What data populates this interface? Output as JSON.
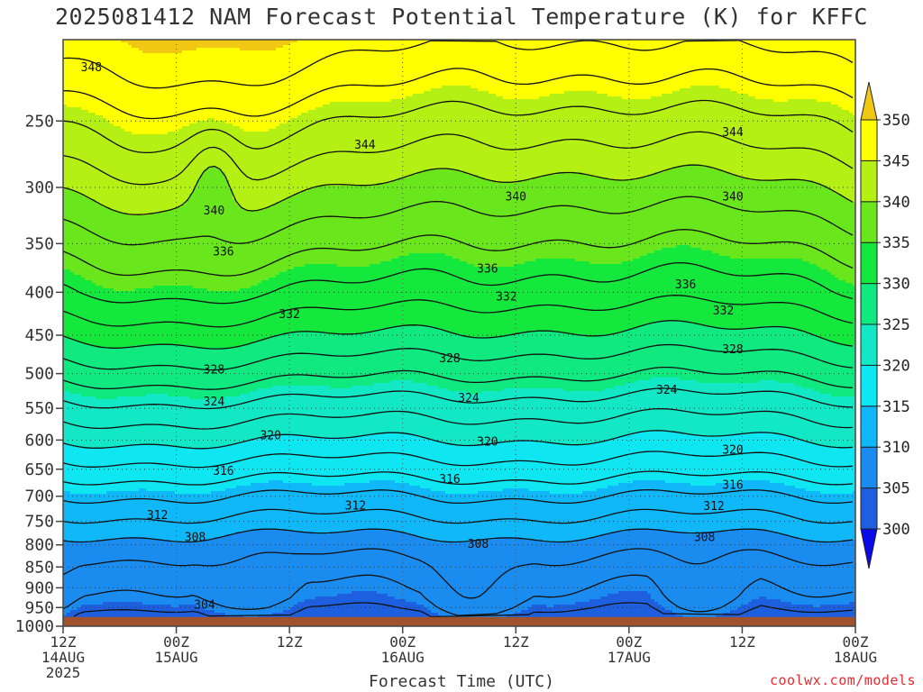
{
  "title": "2025081412 NAM Forecast Potential Temperature (K) for KFFC",
  "xlabel": "Forecast Time (UTC)",
  "credit": "coolwx.com/models",
  "chart_data": {
    "type": "filled-contour",
    "title": "2025081412 NAM Forecast Potential Temperature (K) for KFFC",
    "xlabel": "Forecast Time (UTC)",
    "ylabel": "",
    "x_ticks": [
      {
        "hour": 0,
        "lines": [
          "12Z",
          "14AUG",
          "2025"
        ]
      },
      {
        "hour": 12,
        "lines": [
          "00Z",
          "15AUG"
        ]
      },
      {
        "hour": 24,
        "lines": [
          "12Z"
        ]
      },
      {
        "hour": 36,
        "lines": [
          "00Z",
          "16AUG"
        ]
      },
      {
        "hour": 48,
        "lines": [
          "12Z"
        ]
      },
      {
        "hour": 60,
        "lines": [
          "00Z",
          "17AUG"
        ]
      },
      {
        "hour": 72,
        "lines": [
          "12Z"
        ]
      },
      {
        "hour": 84,
        "lines": [
          "00Z",
          "18AUG"
        ]
      }
    ],
    "xlim_hours": [
      0,
      84
    ],
    "y_ticks": [
      250,
      300,
      350,
      400,
      450,
      500,
      550,
      600,
      650,
      700,
      750,
      800,
      850,
      900,
      950,
      1000
    ],
    "ylim_hPa": [
      200,
      1000
    ],
    "y_scale": "log",
    "y_reversed": true,
    "grid": "dotted",
    "colorbar": {
      "levels": [
        300,
        305,
        310,
        315,
        320,
        325,
        330,
        335,
        340,
        345,
        350
      ],
      "colors": [
        "#0a0ae6",
        "#1e5fe0",
        "#1a8cf0",
        "#10b8fa",
        "#0ee6f2",
        "#12e8c6",
        "#10e880",
        "#14e83c",
        "#6ae61c",
        "#b4f014",
        "#ffff00",
        "#f0c814"
      ],
      "extend": "both",
      "ticks": [
        "300",
        "305",
        "310",
        "315",
        "320",
        "325",
        "330",
        "335",
        "340",
        "345",
        "350"
      ]
    },
    "terrain_color": "#a0522d",
    "terrain_top_hPa": 975,
    "profile_levels_hPa": [
      975,
      950,
      925,
      900,
      850,
      800,
      750,
      700,
      650,
      600,
      550,
      500,
      450,
      400,
      350,
      300,
      275,
      250,
      225,
      200
    ],
    "mean_profile_K": [
      303.5,
      305,
      306,
      306.5,
      307.5,
      309,
      311.5,
      314,
      317,
      320,
      323,
      326.5,
      330,
      333.5,
      336.5,
      340,
      342,
      344,
      346.5,
      349
    ],
    "contour_levels": [
      304,
      306,
      308,
      310,
      312,
      314,
      316,
      318,
      320,
      322,
      324,
      326,
      328,
      330,
      332,
      334,
      336,
      338,
      340,
      342,
      344,
      346,
      348
    ],
    "contour_labels": [
      {
        "text": "348",
        "hour": 3,
        "hPa": 216
      },
      {
        "text": "344",
        "hour": 32,
        "hPa": 267
      },
      {
        "text": "344",
        "hour": 71,
        "hPa": 258
      },
      {
        "text": "340",
        "hour": 16,
        "hPa": 320
      },
      {
        "text": "340",
        "hour": 48,
        "hPa": 308
      },
      {
        "text": "340",
        "hour": 71,
        "hPa": 308
      },
      {
        "text": "336",
        "hour": 17,
        "hPa": 358
      },
      {
        "text": "336",
        "hour": 45,
        "hPa": 375
      },
      {
        "text": "336",
        "hour": 66,
        "hPa": 392
      },
      {
        "text": "332",
        "hour": 24,
        "hPa": 425
      },
      {
        "text": "332",
        "hour": 47,
        "hPa": 405
      },
      {
        "text": "332",
        "hour": 70,
        "hPa": 421
      },
      {
        "text": "328",
        "hour": 16,
        "hPa": 495
      },
      {
        "text": "328",
        "hour": 41,
        "hPa": 480
      },
      {
        "text": "328",
        "hour": 71,
        "hPa": 468
      },
      {
        "text": "324",
        "hour": 16,
        "hPa": 540
      },
      {
        "text": "324",
        "hour": 43,
        "hPa": 535
      },
      {
        "text": "324",
        "hour": 64,
        "hPa": 523
      },
      {
        "text": "320",
        "hour": 22,
        "hPa": 593
      },
      {
        "text": "320",
        "hour": 45,
        "hPa": 603
      },
      {
        "text": "320",
        "hour": 71,
        "hPa": 617
      },
      {
        "text": "316",
        "hour": 17,
        "hPa": 654
      },
      {
        "text": "316",
        "hour": 41,
        "hPa": 668
      },
      {
        "text": "316",
        "hour": 71,
        "hPa": 679
      },
      {
        "text": "312",
        "hour": 10,
        "hPa": 738
      },
      {
        "text": "312",
        "hour": 31,
        "hPa": 719
      },
      {
        "text": "312",
        "hour": 69,
        "hPa": 720
      },
      {
        "text": "308",
        "hour": 14,
        "hPa": 784
      },
      {
        "text": "308",
        "hour": 44,
        "hPa": 799
      },
      {
        "text": "308",
        "hour": 68,
        "hPa": 784
      },
      {
        "text": "304",
        "hour": 15,
        "hPa": 943
      }
    ]
  }
}
